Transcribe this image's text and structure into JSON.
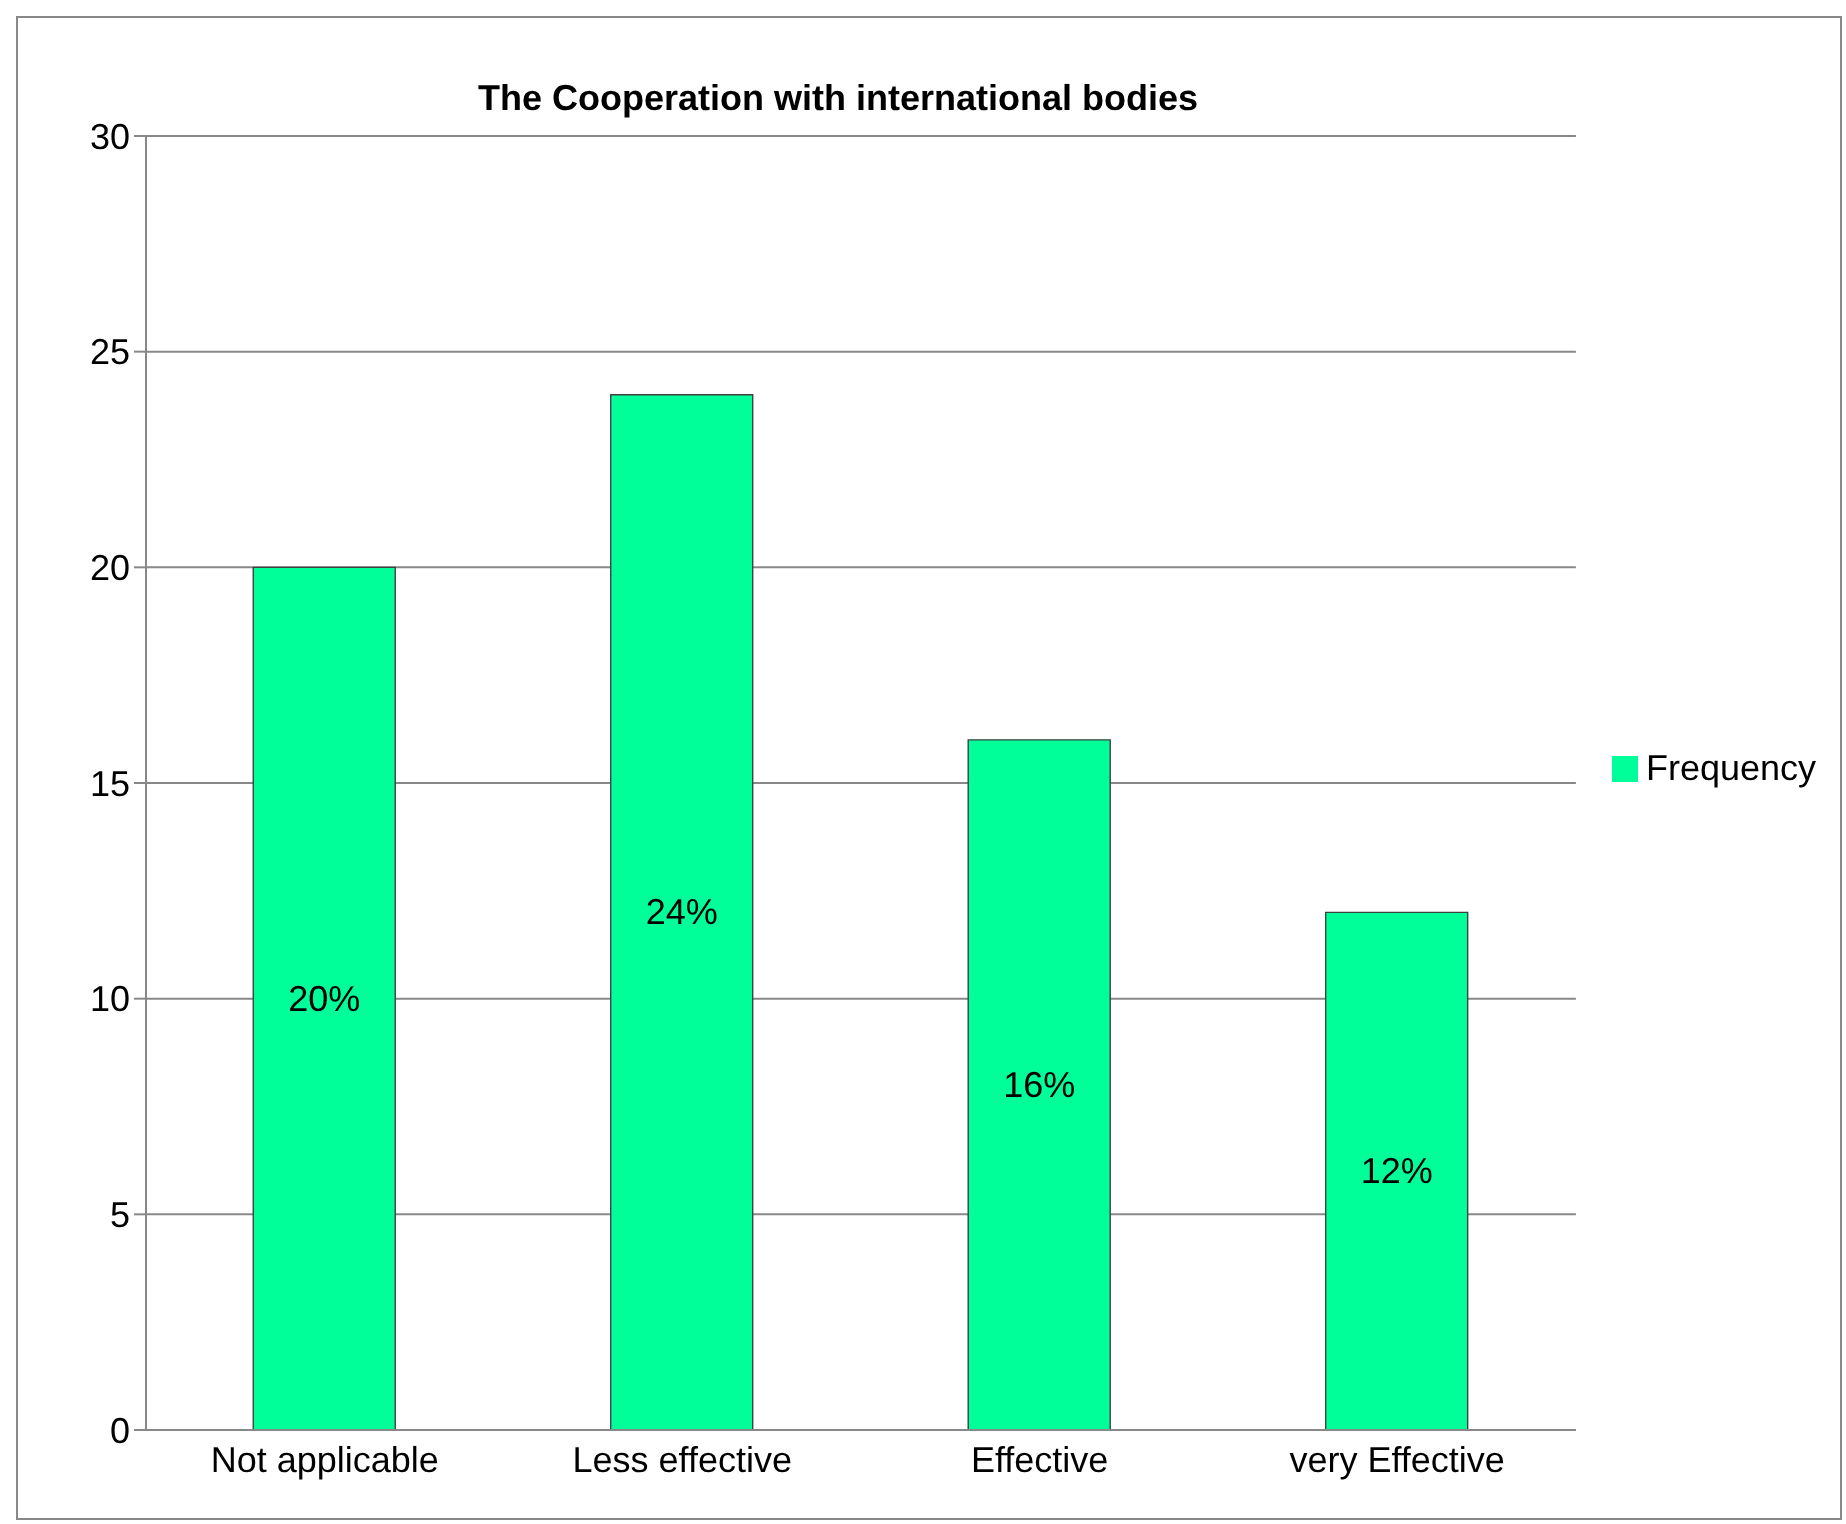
{
  "chart_data": {
    "type": "bar",
    "title": "The Cooperation with international bodies",
    "categories": [
      "Not applicable",
      "Less effective",
      "Effective",
      "very Effective"
    ],
    "series": [
      {
        "name": "Frequency",
        "color": "#00ff99",
        "values": [
          20,
          24,
          16,
          12
        ],
        "value_labels": [
          "20%",
          "24%",
          "16%",
          "12%"
        ]
      }
    ],
    "ylim": [
      0,
      30
    ],
    "yticks": [
      0,
      5,
      10,
      15,
      20,
      25,
      30
    ],
    "grid": "y",
    "legend": "right"
  }
}
